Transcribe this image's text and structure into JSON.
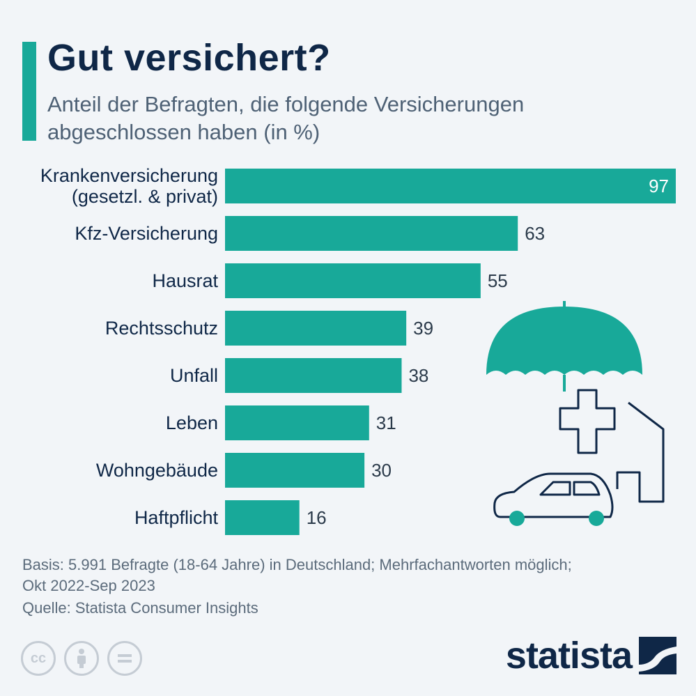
{
  "header": {
    "title": "Gut versichert?",
    "subtitle": "Anteil der Befragten, die folgende Versicherungen abgeschlossen haben (in %)"
  },
  "colors": {
    "accent": "#18a999",
    "navy": "#0f2747",
    "background": "#f2f5f8"
  },
  "chart_data": {
    "type": "bar",
    "orientation": "horizontal",
    "title": "Gut versichert?",
    "subtitle": "Anteil der Befragten, die folgende Versicherungen abgeschlossen haben (in %)",
    "categories": [
      [
        "Krankenversicherung",
        "(gesetzl. & privat)"
      ],
      [
        "Kfz-Versicherung"
      ],
      [
        "Hausrat"
      ],
      [
        "Rechtsschutz"
      ],
      [
        "Unfall"
      ],
      [
        "Leben"
      ],
      [
        "Wohngebäude"
      ],
      [
        "Haftpflicht"
      ]
    ],
    "values": [
      97,
      63,
      55,
      39,
      38,
      31,
      30,
      16
    ],
    "xlim": [
      0,
      97
    ],
    "grid": false,
    "legend": "none",
    "bar_color": "#18a999"
  },
  "footer": {
    "basis_line1": "Basis: 5.991 Befragte (18-64 Jahre) in Deutschland; Mehrfachantworten möglich;",
    "basis_line2": "Okt 2022-Sep 2023",
    "source": "Quelle: Statista Consumer Insights",
    "license_icons": [
      "cc-icon",
      "by-icon",
      "nd-icon"
    ],
    "brand": "statista"
  }
}
